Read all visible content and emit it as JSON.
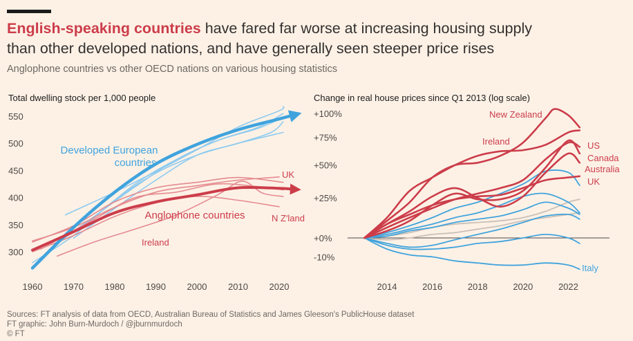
{
  "header": {
    "headline_highlight": "English-speaking countries",
    "headline_rest_1": " have fared far worse at increasing housing supply",
    "headline_line2": "than other developed nations, and have generally seen steeper price rises",
    "subtitle": "Anglophone countries vs other OECD nations on various housing statistics"
  },
  "footer": {
    "sources": "Sources: FT analysis of data from OECD, Australian Bureau of Statistics and James Gleeson's PublicHouse dataset",
    "graphic": "FT graphic: John Burn-Murdoch / @jburnmurdoch",
    "copyright": "© FT"
  },
  "colors": {
    "anglophone": "#cc3d4a",
    "anglophone_light": "#e58a8f",
    "european": "#40a3dd",
    "european_light": "#8ecbef",
    "grey": "#c9c0b8"
  },
  "chart_data": [
    {
      "type": "line",
      "title": "Total dwelling stock per 1,000 people",
      "xlim": [
        1960,
        2024
      ],
      "ylim": [
        270,
        570
      ],
      "xticks": [
        "1960",
        "1970",
        "1980",
        "1990",
        "2000",
        "2010",
        "2020"
      ],
      "yticks": [
        "300",
        "350",
        "400",
        "450",
        "500",
        "550"
      ],
      "grid": false,
      "annotations": [
        "Developed European countries",
        "Anglophone countries",
        "UK",
        "N Z'land",
        "Ireland"
      ],
      "trend_series": [
        {
          "name": "Developed European countries",
          "color": "#40a3dd",
          "x": [
            1960,
            1970,
            1980,
            1990,
            2000,
            2010,
            2020,
            2024
          ],
          "values": [
            270,
            345,
            410,
            462,
            498,
            525,
            545,
            553
          ]
        },
        {
          "name": "Anglophone countries",
          "color": "#cc3d4a",
          "x": [
            1960,
            1970,
            1980,
            1990,
            2000,
            2010,
            2020,
            2024
          ],
          "values": [
            303,
            337,
            372,
            392,
            405,
            418,
            417,
            415
          ]
        }
      ],
      "series": [
        {
          "group": "european",
          "x": [
            1968,
            1980,
            1990,
            2000,
            2010,
            2020,
            2021
          ],
          "values": [
            368,
            410,
            448,
            488,
            530,
            560,
            568
          ]
        },
        {
          "group": "european",
          "x": [
            1965,
            1975,
            1985,
            1995,
            2005,
            2015,
            2021
          ],
          "values": [
            310,
            365,
            420,
            470,
            505,
            530,
            555
          ]
        },
        {
          "group": "european",
          "x": [
            1970,
            1980,
            1990,
            2000,
            2010,
            2018,
            2021
          ],
          "values": [
            325,
            380,
            432,
            478,
            500,
            520,
            540
          ]
        },
        {
          "group": "european",
          "x": [
            1960,
            1970,
            1980,
            1990,
            2000,
            2010,
            2021
          ],
          "values": [
            280,
            330,
            395,
            445,
            478,
            500,
            520
          ]
        },
        {
          "group": "european",
          "x": [
            1972,
            1985,
            1995,
            2005,
            2015,
            2021
          ],
          "values": [
            345,
            425,
            470,
            505,
            528,
            548
          ]
        },
        {
          "group": "anglophone",
          "name": "UK",
          "x": [
            1960,
            1970,
            1980,
            1990,
            2000,
            2010,
            2020
          ],
          "values": [
            320,
            345,
            382,
            410,
            422,
            432,
            438
          ]
        },
        {
          "group": "anglophone",
          "x": [
            1960,
            1970,
            1980,
            1990,
            2000,
            2010,
            2021
          ],
          "values": [
            318,
            348,
            392,
            418,
            428,
            437,
            428
          ]
        },
        {
          "group": "anglophone",
          "x": [
            1962,
            1975,
            1985,
            1995,
            2005,
            2015,
            2021
          ],
          "values": [
            305,
            360,
            400,
            410,
            425,
            420,
            414
          ]
        },
        {
          "group": "anglophone",
          "name": "N Z'land",
          "x": [
            1960,
            1970,
            1980,
            1990,
            2000,
            2010,
            2020
          ],
          "values": [
            300,
            330,
            365,
            390,
            402,
            395,
            383
          ]
        },
        {
          "group": "anglophone",
          "name": "Ireland",
          "x": [
            1966,
            1975,
            1985,
            1995,
            2005,
            2011,
            2016,
            2021
          ],
          "values": [
            292,
            318,
            342,
            368,
            405,
            430,
            408,
            402
          ]
        }
      ]
    },
    {
      "type": "line",
      "title": "Change in real house prices since Q1 2013 (log scale)",
      "scale": "log",
      "xlim": [
        2012.5,
        2023.8
      ],
      "ylim": [
        -20,
        112
      ],
      "xticks": [
        "2014",
        "2016",
        "2018",
        "2020",
        "2022"
      ],
      "yticks": [
        {
          "label": "+100%",
          "value": 100
        },
        {
          "label": "+75%",
          "value": 75
        },
        {
          "label": "+50%",
          "value": 50
        },
        {
          "label": "+25%",
          "value": 25
        },
        {
          "label": "+0%",
          "value": 0
        },
        {
          "label": "-10%",
          "value": -10
        }
      ],
      "grid": false,
      "series": [
        {
          "name": "New Zealand",
          "group": "anglophone",
          "x": [
            2013,
            2014,
            2015,
            2016,
            2017,
            2018,
            2019,
            2020,
            2021,
            2021.4,
            2022,
            2022.5
          ],
          "values": [
            0,
            10,
            22,
            40,
            50,
            52,
            58,
            70,
            95,
            105,
            98,
            85
          ]
        },
        {
          "name": "Ireland",
          "group": "anglophone",
          "x": [
            2013,
            2014,
            2015,
            2016,
            2017,
            2018,
            2019,
            2020,
            2021,
            2022,
            2022.5
          ],
          "values": [
            0,
            12,
            30,
            40,
            50,
            58,
            62,
            63,
            68,
            80,
            82
          ]
        },
        {
          "name": "US",
          "group": "anglophone",
          "x": [
            2013,
            2014,
            2015,
            2016,
            2017,
            2018,
            2019,
            2020,
            2021,
            2022,
            2022.5
          ],
          "values": [
            0,
            6,
            12,
            18,
            24,
            28,
            32,
            38,
            55,
            70,
            66
          ]
        },
        {
          "name": "Canada",
          "group": "anglophone",
          "x": [
            2013,
            2014,
            2015,
            2016,
            2017,
            2018,
            2019,
            2020,
            2021,
            2022,
            2022.5
          ],
          "values": [
            0,
            4,
            10,
            20,
            28,
            24,
            24,
            30,
            48,
            72,
            60
          ]
        },
        {
          "name": "Australia",
          "group": "anglophone",
          "x": [
            2013,
            2014,
            2015,
            2016,
            2017,
            2018,
            2019,
            2020,
            2021,
            2022,
            2022.5
          ],
          "values": [
            0,
            8,
            16,
            26,
            32,
            25,
            19,
            26,
            44,
            60,
            52
          ]
        },
        {
          "name": "UK",
          "group": "anglophone",
          "x": [
            2013,
            2014,
            2015,
            2016,
            2017,
            2018,
            2019,
            2020,
            2021,
            2022,
            2022.5
          ],
          "values": [
            0,
            8,
            14,
            20,
            24,
            26,
            27,
            32,
            38,
            40,
            41
          ]
        },
        {
          "group": "european",
          "x": [
            2013,
            2014,
            2015,
            2016,
            2017,
            2018,
            2019,
            2020,
            2021,
            2022,
            2022.5
          ],
          "values": [
            0,
            3,
            7,
            12,
            18,
            22,
            28,
            35,
            45,
            44,
            34
          ]
        },
        {
          "group": "european",
          "x": [
            2013,
            2014,
            2015,
            2016,
            2017,
            2018,
            2019,
            2020,
            2021,
            2022,
            2022.5
          ],
          "values": [
            0,
            2,
            5,
            8,
            12,
            15,
            20,
            26,
            28,
            22,
            15
          ]
        },
        {
          "group": "european",
          "x": [
            2013,
            2014,
            2015,
            2016,
            2017,
            2018,
            2019,
            2020,
            2021,
            2022,
            2022.5
          ],
          "values": [
            0,
            1,
            4,
            6,
            9,
            11,
            13,
            17,
            22,
            18,
            14
          ]
        },
        {
          "group": "european",
          "x": [
            2013,
            2014,
            2015,
            2016,
            2017,
            2018,
            2019,
            2020,
            2021,
            2022,
            2022.5
          ],
          "values": [
            0,
            -3,
            -5,
            -4,
            -1,
            2,
            5,
            9,
            13,
            14,
            11
          ]
        },
        {
          "group": "european",
          "x": [
            2013,
            2014,
            2015,
            2016,
            2017,
            2018,
            2019,
            2020,
            2021,
            2022,
            2022.5
          ],
          "values": [
            0,
            -4,
            -6,
            -6,
            -5,
            -3,
            -2,
            0,
            2,
            0,
            -3
          ]
        },
        {
          "group": "grey",
          "x": [
            2013,
            2014,
            2015,
            2016,
            2017,
            2018,
            2019,
            2020,
            2021,
            2022,
            2022.5
          ],
          "values": [
            0,
            1,
            3,
            6,
            8,
            9,
            10,
            12,
            16,
            22,
            24
          ]
        },
        {
          "group": "grey",
          "x": [
            2013,
            2014,
            2015,
            2016,
            2017,
            2018,
            2019,
            2020,
            2021,
            2022,
            2022.5
          ],
          "values": [
            0,
            -1,
            0,
            2,
            3,
            5,
            7,
            10,
            12,
            14,
            15
          ]
        },
        {
          "name": "Italy",
          "group": "european",
          "x": [
            2013,
            2014,
            2015,
            2016,
            2017,
            2018,
            2019,
            2020,
            2021,
            2022,
            2022.5
          ],
          "values": [
            0,
            -6,
            -9,
            -10,
            -12,
            -13,
            -14,
            -14,
            -13,
            -14,
            -16
          ]
        }
      ]
    }
  ]
}
